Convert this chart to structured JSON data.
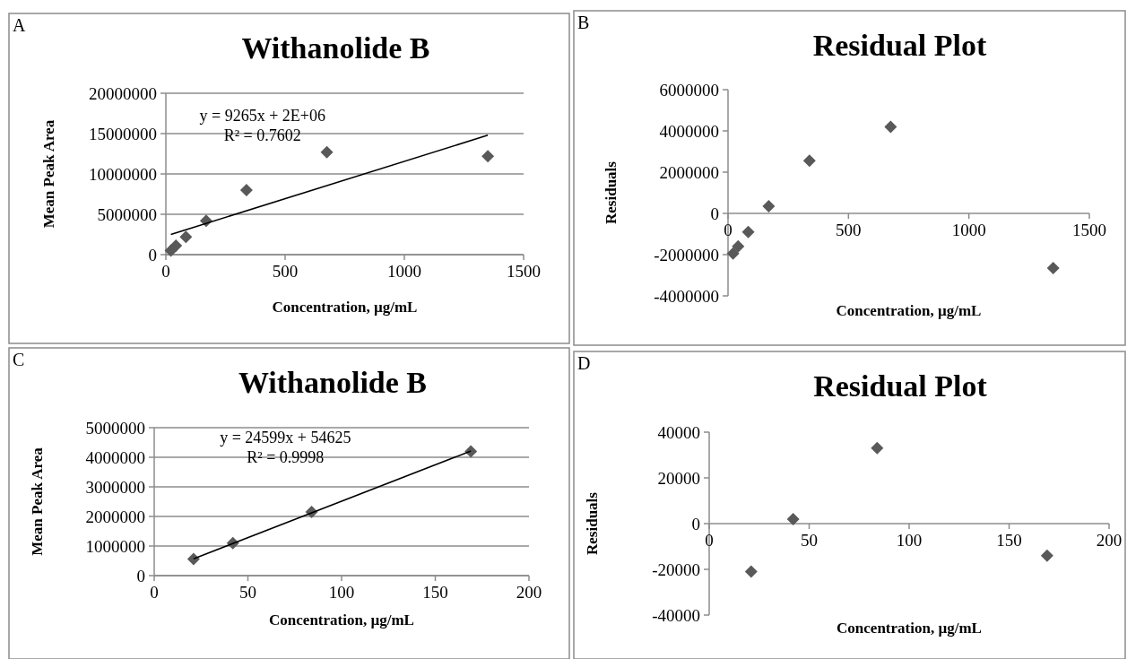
{
  "chart_data": [
    {
      "type": "scatter",
      "title": "Withanolide B",
      "xlabel": "Concentration, µg/mL",
      "ylabel": "Mean Peak Area",
      "annotations": [
        "A",
        "y = 9265x + 2E+06",
        "R² = 0.7602"
      ],
      "xlim": [
        0,
        1500
      ],
      "xticks": [
        0,
        500,
        1000,
        1500
      ],
      "ylim": [
        0,
        20000000
      ],
      "yticks": [
        0,
        5000000,
        10000000,
        15000000,
        20000000
      ],
      "grid": "y",
      "marker": "diamond",
      "series": [
        {
          "color": "#595959",
          "x": [
            21,
            42,
            84,
            169,
            338,
            675,
            1350
          ],
          "values": [
            500000,
            1100000,
            2200000,
            4200000,
            8000000,
            12700000,
            12200000
          ]
        },
        {
          "type": "line",
          "marker": "none",
          "color": "#000000",
          "x": [
            21,
            1350
          ],
          "values": [
            2500000,
            14800000
          ]
        }
      ]
    },
    {
      "type": "scatter",
      "title": "Residual Plot",
      "xlabel": "Concentration, µg/mL",
      "ylabel": "Residuals",
      "annotations": [
        "B"
      ],
      "xlim": [
        0,
        1500
      ],
      "xticks": [
        0,
        500,
        1000,
        1500
      ],
      "ylim": [
        -4000000,
        6000000
      ],
      "yticks": [
        -4000000,
        -2000000,
        0,
        2000000,
        4000000,
        6000000
      ],
      "grid": false,
      "marker": "diamond",
      "series": [
        {
          "color": "#595959",
          "x": [
            21,
            42,
            84,
            169,
            338,
            675,
            1350
          ],
          "values": [
            -1950000,
            -1600000,
            -900000,
            350000,
            2550000,
            4200000,
            -2650000
          ]
        }
      ]
    },
    {
      "type": "scatter",
      "title": "Withanolide B",
      "xlabel": "Concentration, µg/mL",
      "ylabel": "Mean Peak Area",
      "annotations": [
        "C",
        "y = 24599x + 54625",
        "R² = 0.9998"
      ],
      "xlim": [
        0,
        200
      ],
      "xticks": [
        0,
        50,
        100,
        150,
        200
      ],
      "ylim": [
        0,
        5000000
      ],
      "yticks": [
        0,
        1000000,
        2000000,
        3000000,
        4000000,
        5000000
      ],
      "grid": "y",
      "marker": "diamond",
      "series": [
        {
          "color": "#595959",
          "x": [
            21,
            42,
            84,
            169
          ],
          "values": [
            560000,
            1100000,
            2150000,
            4200000
          ]
        },
        {
          "type": "line",
          "marker": "none",
          "color": "#000000",
          "x": [
            21,
            169
          ],
          "values": [
            570000,
            4210000
          ]
        }
      ]
    },
    {
      "type": "scatter",
      "title": "Residual Plot",
      "xlabel": "Concentration, µg/mL",
      "ylabel": "Residuals",
      "annotations": [
        "D"
      ],
      "xlim": [
        0,
        200
      ],
      "xticks": [
        0,
        50,
        100,
        150,
        200
      ],
      "ylim": [
        -40000,
        40000
      ],
      "yticks": [
        -40000,
        -20000,
        0,
        20000,
        40000
      ],
      "grid": false,
      "marker": "diamond",
      "series": [
        {
          "color": "#595959",
          "x": [
            21,
            42,
            84,
            169
          ],
          "values": [
            -21000,
            2000,
            33000,
            -14000
          ]
        }
      ]
    }
  ]
}
